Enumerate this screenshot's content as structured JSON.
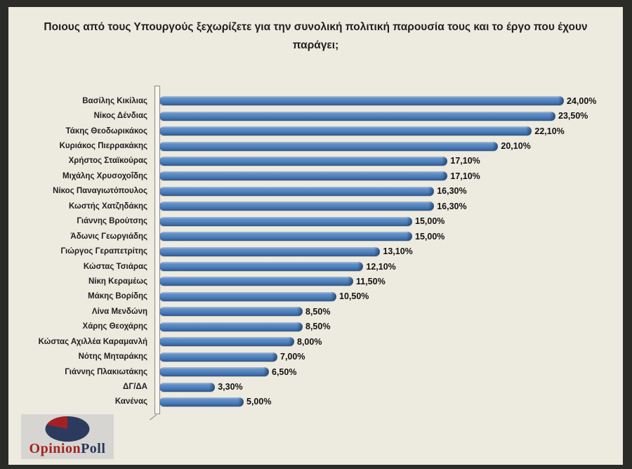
{
  "title": "Ποιους από τους Υπουργούς  ξεχωρίζετε για την συνολική πολιτική παρουσία τους και το έργο που έχουν παράγει;",
  "chart_data": {
    "type": "bar",
    "orientation": "horizontal",
    "title": "Ποιους από τους Υπουργούς  ξεχωρίζετε για την συνολική πολιτική παρουσία τους και το έργο που έχουν παράγει;",
    "categories": [
      "Βασίλης Κικίλιας",
      "Νίκος Δένδιας",
      "Τάκης Θεοδωρικάκος",
      "Κυριάκος Πιερρακάκης",
      "Χρήστος Σταϊκούρας",
      "Μιχάλης Χρυσοχοΐδης",
      "Νίκος Παναγιωτόπουλος",
      "Κωστής Χατζηδάκης",
      "Γιάννης Βρούτσης",
      "Άδωνις Γεωργιάδης",
      "Γιώργος Γεραπετρίτης",
      "Κώστας Τσιάρας",
      "Νίκη Κεραμέως",
      "Μάκης Βορίδης",
      "Λίνα Μενδώνη",
      "Χάρης Θεοχάρης",
      "Κώστας Αχιλλέα Καραμανλή",
      "Νότης Μηταράκης",
      "Γιάννης Πλακιωτάκης",
      "ΔΓ/ΔΑ",
      "Κανένας"
    ],
    "values": [
      24.0,
      23.5,
      22.1,
      20.1,
      17.1,
      17.1,
      16.3,
      16.3,
      15.0,
      15.0,
      13.1,
      12.1,
      11.5,
      10.5,
      8.5,
      8.5,
      8.0,
      7.0,
      6.5,
      3.3,
      5.0
    ],
    "value_labels": [
      "24,00%",
      "23,50%",
      "22,10%",
      "20,10%",
      "17,10%",
      "17,10%",
      "16,30%",
      "16,30%",
      "15,00%",
      "15,00%",
      "13,10%",
      "12,10%",
      "11,50%",
      "10,50%",
      "8,50%",
      "8,50%",
      "8,00%",
      "7,00%",
      "6,50%",
      "3,30%",
      "5,00%"
    ],
    "xlim": [
      0,
      27.5
    ],
    "bar_color": "#4f81bd",
    "grid": false,
    "legend_position": "none",
    "value_label_format": "percent-comma"
  },
  "logo": {
    "word1": "Opinion",
    "word2": "Poll",
    "word1_color": "#a5241f",
    "word2_color": "#27365a",
    "pie_main_color": "#2c3a5e",
    "pie_wedge_color": "#a32023"
  },
  "colors": {
    "frame_border": "#2b2b28",
    "background": "#edeadf",
    "bar_fill": "#4f81bd",
    "text": "#1f1f1f"
  }
}
